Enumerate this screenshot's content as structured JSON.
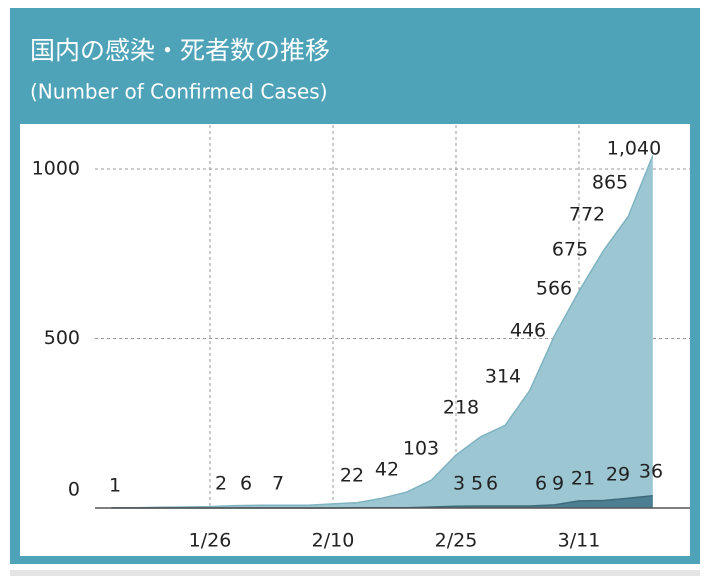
{
  "chart_data": {
    "type": "area",
    "title": "国内の感染・死者数の推移",
    "subtitle": "(Number of Confirmed Cases)",
    "categories": [
      null,
      null,
      null,
      null,
      "1/26",
      null,
      null,
      null,
      null,
      "2/10",
      null,
      null,
      null,
      null,
      "2/25",
      null,
      null,
      null,
      null,
      "3/11",
      null,
      null,
      null
    ],
    "series": [
      {
        "color": "#9cc6d2",
        "values": [
          1,
          1,
          2,
          3,
          4,
          7,
          8,
          8,
          8,
          12,
          16,
          29,
          47,
          82,
          156,
          210,
          244,
          347,
          508,
          640,
          760,
          860,
          1040
        ]
      },
      {
        "color": "#4d7f92",
        "values": [
          0,
          0,
          0,
          0,
          0,
          0,
          0,
          0,
          0,
          0,
          1,
          1,
          1,
          3,
          5,
          6,
          6,
          6,
          9,
          21,
          22,
          29,
          36
        ]
      }
    ],
    "annotations": [
      "1",
      "2",
      "6",
      "7",
      "22",
      "42",
      "103",
      "218",
      "314",
      "446",
      "566",
      "675",
      "772",
      "865",
      "1,040"
    ],
    "death_annotations": [
      "3",
      "5",
      "6",
      "6",
      "9",
      "21",
      "29",
      "36"
    ],
    "ylim": [
      0,
      1130
    ],
    "yticks": [
      0,
      500,
      1000
    ],
    "grid": true
  }
}
